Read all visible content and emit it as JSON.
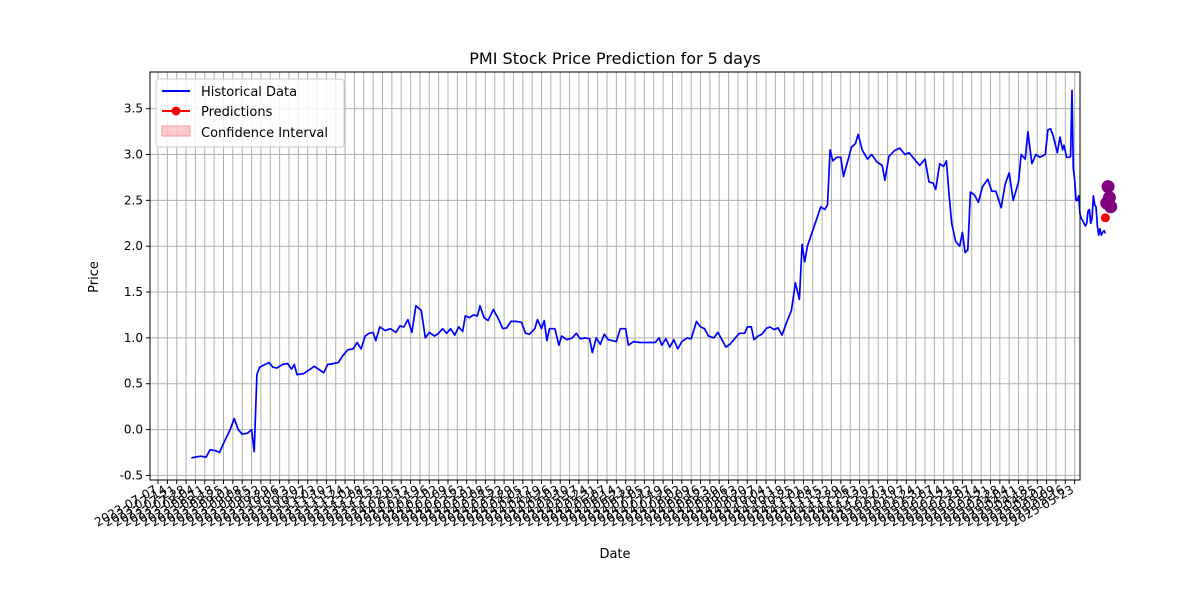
{
  "chart_data": {
    "type": "line",
    "title": "PMI Stock Price Prediction for 5 days",
    "xlabel": "Date",
    "ylabel": "Price",
    "ylim": [
      -0.55,
      3.9
    ],
    "yticks": [
      "-0.5",
      "0.0",
      "0.5",
      "1.0",
      "1.5",
      "2.0",
      "2.5",
      "3.0",
      "3.5"
    ],
    "grid": true,
    "legend_placement": "top-left",
    "legend": [
      "Historical Data",
      "Predictions",
      "Confidence Interval"
    ],
    "colors": {
      "historical": "#0000ff",
      "predictions": "#ff0000",
      "confidence": "#ff9999",
      "highlight": "#800080",
      "grid": "#b0b0b0"
    },
    "x_start": "2023-07-01",
    "x_end": "2025-05-27",
    "series": [
      {
        "name": "Historical Data",
        "points": [
          [
            "2023-08-01",
            -0.31
          ],
          [
            "2023-08-04",
            -0.3
          ],
          [
            "2023-08-08",
            -0.29
          ],
          [
            "2023-08-12",
            -0.3
          ],
          [
            "2023-08-15",
            -0.22
          ],
          [
            "2023-08-19",
            -0.23
          ],
          [
            "2023-08-22",
            -0.25
          ],
          [
            "2023-08-26",
            -0.12
          ],
          [
            "2023-08-30",
            0.0
          ],
          [
            "2023-09-02",
            0.12
          ],
          [
            "2023-09-05",
            0.0
          ],
          [
            "2023-09-08",
            -0.05
          ],
          [
            "2023-09-12",
            -0.04
          ],
          [
            "2023-09-15",
            0.0
          ],
          [
            "2023-09-17",
            -0.24
          ],
          [
            "2023-09-19",
            0.6
          ],
          [
            "2023-09-21",
            0.68
          ],
          [
            "2023-09-25",
            0.71
          ],
          [
            "2023-09-28",
            0.73
          ],
          [
            "2023-10-01",
            0.68
          ],
          [
            "2023-10-04",
            0.67
          ],
          [
            "2023-10-08",
            0.71
          ],
          [
            "2023-10-12",
            0.72
          ],
          [
            "2023-10-15",
            0.66
          ],
          [
            "2023-10-17",
            0.71
          ],
          [
            "2023-10-19",
            0.6
          ],
          [
            "2023-10-24",
            0.61
          ],
          [
            "2023-10-28",
            0.65
          ],
          [
            "2023-11-01",
            0.69
          ],
          [
            "2023-11-05",
            0.65
          ],
          [
            "2023-11-08",
            0.62
          ],
          [
            "2023-11-11",
            0.71
          ],
          [
            "2023-11-15",
            0.72
          ],
          [
            "2023-11-19",
            0.73
          ],
          [
            "2023-11-22",
            0.8
          ],
          [
            "2023-11-26",
            0.87
          ],
          [
            "2023-11-30",
            0.88
          ],
          [
            "2023-12-03",
            0.95
          ],
          [
            "2023-12-06",
            0.88
          ],
          [
            "2023-12-09",
            1.02
          ],
          [
            "2023-12-12",
            1.05
          ],
          [
            "2023-12-15",
            1.06
          ],
          [
            "2023-12-17",
            0.97
          ],
          [
            "2023-12-20",
            1.12
          ],
          [
            "2023-12-24",
            1.08
          ],
          [
            "2023-12-28",
            1.1
          ],
          [
            "2024-01-01",
            1.06
          ],
          [
            "2024-01-04",
            1.13
          ],
          [
            "2024-01-07",
            1.12
          ],
          [
            "2024-01-10",
            1.2
          ],
          [
            "2024-01-13",
            1.06
          ],
          [
            "2024-01-16",
            1.35
          ],
          [
            "2024-01-20",
            1.3
          ],
          [
            "2024-01-23",
            1.0
          ],
          [
            "2024-01-26",
            1.06
          ],
          [
            "2024-01-30",
            1.02
          ],
          [
            "2024-02-02",
            1.05
          ],
          [
            "2024-02-05",
            1.1
          ],
          [
            "2024-02-08",
            1.05
          ],
          [
            "2024-02-11",
            1.1
          ],
          [
            "2024-02-14",
            1.03
          ],
          [
            "2024-02-17",
            1.12
          ],
          [
            "2024-02-20",
            1.07
          ],
          [
            "2024-02-22",
            1.24
          ],
          [
            "2024-02-25",
            1.22
          ],
          [
            "2024-02-28",
            1.25
          ],
          [
            "2024-03-02",
            1.24
          ],
          [
            "2024-03-04",
            1.35
          ],
          [
            "2024-03-07",
            1.22
          ],
          [
            "2024-03-10",
            1.19
          ],
          [
            "2024-03-14",
            1.31
          ],
          [
            "2024-03-18",
            1.2
          ],
          [
            "2024-03-21",
            1.1
          ],
          [
            "2024-03-24",
            1.11
          ],
          [
            "2024-03-27",
            1.18
          ],
          [
            "2024-03-31",
            1.18
          ],
          [
            "2024-04-04",
            1.17
          ],
          [
            "2024-04-07",
            1.05
          ],
          [
            "2024-04-10",
            1.04
          ],
          [
            "2024-04-14",
            1.1
          ],
          [
            "2024-04-16",
            1.2
          ],
          [
            "2024-04-19",
            1.1
          ],
          [
            "2024-04-21",
            1.19
          ],
          [
            "2024-04-23",
            0.97
          ],
          [
            "2024-04-25",
            1.1
          ],
          [
            "2024-04-29",
            1.1
          ],
          [
            "2024-05-02",
            0.92
          ],
          [
            "2024-05-04",
            1.02
          ],
          [
            "2024-05-08",
            0.98
          ],
          [
            "2024-05-12",
            1.0
          ],
          [
            "2024-05-15",
            1.05
          ],
          [
            "2024-05-18",
            0.99
          ],
          [
            "2024-05-22",
            1.0
          ],
          [
            "2024-05-25",
            0.99
          ],
          [
            "2024-05-27",
            0.84
          ],
          [
            "2024-05-30",
            1.0
          ],
          [
            "2024-06-02",
            0.93
          ],
          [
            "2024-06-05",
            1.04
          ],
          [
            "2024-06-08",
            0.98
          ],
          [
            "2024-06-11",
            0.97
          ],
          [
            "2024-06-14",
            0.96
          ],
          [
            "2024-06-17",
            1.1
          ],
          [
            "2024-06-21",
            1.1
          ],
          [
            "2024-06-23",
            0.92
          ],
          [
            "2024-06-27",
            0.96
          ],
          [
            "2024-07-01",
            0.95
          ],
          [
            "2024-07-05",
            0.95
          ],
          [
            "2024-07-09",
            0.95
          ],
          [
            "2024-07-13",
            0.95
          ],
          [
            "2024-07-16",
            1.0
          ],
          [
            "2024-07-18",
            0.92
          ],
          [
            "2024-07-21",
            0.99
          ],
          [
            "2024-07-24",
            0.9
          ],
          [
            "2024-07-27",
            0.98
          ],
          [
            "2024-07-30",
            0.88
          ],
          [
            "2024-08-02",
            0.96
          ],
          [
            "2024-08-06",
            1.0
          ],
          [
            "2024-08-09",
            0.99
          ],
          [
            "2024-08-13",
            1.18
          ],
          [
            "2024-08-16",
            1.12
          ],
          [
            "2024-08-19",
            1.1
          ],
          [
            "2024-08-22",
            1.02
          ],
          [
            "2024-08-26",
            1.0
          ],
          [
            "2024-08-29",
            1.06
          ],
          [
            "2024-09-01",
            0.98
          ],
          [
            "2024-09-04",
            0.9
          ],
          [
            "2024-09-07",
            0.93
          ],
          [
            "2024-09-11",
            1.0
          ],
          [
            "2024-09-14",
            1.05
          ],
          [
            "2024-09-18",
            1.05
          ],
          [
            "2024-09-20",
            1.12
          ],
          [
            "2024-09-23",
            1.12
          ],
          [
            "2024-09-25",
            0.98
          ],
          [
            "2024-09-28",
            1.02
          ],
          [
            "2024-10-01",
            1.04
          ],
          [
            "2024-10-04",
            1.1
          ],
          [
            "2024-10-07",
            1.12
          ],
          [
            "2024-10-10",
            1.09
          ],
          [
            "2024-10-13",
            1.11
          ],
          [
            "2024-10-16",
            1.03
          ],
          [
            "2024-10-19",
            1.15
          ],
          [
            "2024-10-23",
            1.3
          ],
          [
            "2024-10-26",
            1.6
          ],
          [
            "2024-10-29",
            1.42
          ],
          [
            "2024-10-31",
            2.02
          ],
          [
            "2024-11-02",
            1.83
          ],
          [
            "2024-11-04",
            2.0
          ],
          [
            "2024-11-07",
            2.13
          ],
          [
            "2024-11-11",
            2.3
          ],
          [
            "2024-11-14",
            2.43
          ],
          [
            "2024-11-17",
            2.4
          ],
          [
            "2024-11-19",
            2.45
          ],
          [
            "2024-11-21",
            3.05
          ],
          [
            "2024-11-23",
            2.93
          ],
          [
            "2024-11-26",
            2.97
          ],
          [
            "2024-11-29",
            2.97
          ],
          [
            "2024-12-01",
            2.76
          ],
          [
            "2024-12-04",
            2.92
          ],
          [
            "2024-12-07",
            3.08
          ],
          [
            "2024-12-10",
            3.12
          ],
          [
            "2024-12-12",
            3.22
          ],
          [
            "2024-12-15",
            3.05
          ],
          [
            "2024-12-19",
            2.95
          ],
          [
            "2024-12-22",
            3.0
          ],
          [
            "2024-12-26",
            2.92
          ],
          [
            "2024-12-30",
            2.88
          ],
          [
            "2025-01-01",
            2.72
          ],
          [
            "2025-01-04",
            2.98
          ],
          [
            "2025-01-08",
            3.04
          ],
          [
            "2025-01-12",
            3.07
          ],
          [
            "2025-01-16",
            3.0
          ],
          [
            "2025-01-19",
            3.02
          ],
          [
            "2025-01-23",
            2.95
          ],
          [
            "2025-01-27",
            2.88
          ],
          [
            "2025-01-31",
            2.95
          ],
          [
            "2025-02-03",
            2.7
          ],
          [
            "2025-02-06",
            2.69
          ],
          [
            "2025-02-08",
            2.62
          ],
          [
            "2025-02-11",
            2.9
          ],
          [
            "2025-02-14",
            2.87
          ],
          [
            "2025-02-16",
            2.93
          ],
          [
            "2025-02-18",
            2.56
          ],
          [
            "2025-02-20",
            2.25
          ],
          [
            "2025-02-23",
            2.05
          ],
          [
            "2025-02-26",
            2.0
          ],
          [
            "2025-02-28",
            2.15
          ],
          [
            "2025-03-02",
            1.93
          ],
          [
            "2025-03-04",
            1.96
          ],
          [
            "2025-03-06",
            2.59
          ],
          [
            "2025-03-09",
            2.56
          ],
          [
            "2025-03-12",
            2.48
          ],
          [
            "2025-03-15",
            2.65
          ],
          [
            "2025-03-19",
            2.73
          ],
          [
            "2025-03-22",
            2.6
          ],
          [
            "2025-03-25",
            2.6
          ],
          [
            "2025-03-29",
            2.42
          ],
          [
            "2025-04-01",
            2.68
          ],
          [
            "2025-04-04",
            2.8
          ],
          [
            "2025-04-07",
            2.5
          ],
          [
            "2025-04-11",
            2.7
          ],
          [
            "2025-04-13",
            3.0
          ],
          [
            "2025-04-16",
            2.95
          ],
          [
            "2025-04-18",
            3.25
          ],
          [
            "2025-04-21",
            2.9
          ],
          [
            "2025-04-24",
            3.0
          ],
          [
            "2025-04-27",
            2.97
          ],
          [
            "2025-05-01",
            3.0
          ],
          [
            "2025-05-03",
            3.27
          ],
          [
            "2025-05-05",
            3.28
          ],
          [
            "2025-05-07",
            3.2
          ],
          [
            "2025-05-10",
            3.02
          ],
          [
            "2025-05-12",
            3.19
          ],
          [
            "2025-05-14",
            3.05
          ],
          [
            "2025-05-15",
            3.1
          ],
          [
            "2025-05-17",
            2.97
          ],
          [
            "2025-05-19",
            2.97
          ],
          [
            "2025-05-20",
            2.98
          ],
          [
            "2025-05-21",
            3.7
          ],
          [
            "2025-05-22",
            2.85
          ],
          [
            "2025-05-23",
            2.72
          ],
          [
            "2025-05-24",
            2.5
          ],
          [
            "2025-05-25",
            2.5
          ],
          [
            "2025-05-26",
            2.55
          ],
          [
            "2025-05-27",
            2.35
          ],
          [
            "2025-05-28",
            2.3
          ],
          [
            "2025-05-29",
            2.28
          ],
          [
            "2025-05-30",
            2.25
          ],
          [
            "2025-05-31",
            2.22
          ],
          [
            "2025-06-01",
            2.25
          ],
          [
            "2025-06-02",
            2.38
          ],
          [
            "2025-06-03",
            2.4
          ],
          [
            "2025-06-04",
            2.25
          ],
          [
            "2025-06-05",
            2.3
          ],
          [
            "2025-06-06",
            2.55
          ],
          [
            "2025-06-07",
            2.45
          ],
          [
            "2025-06-08",
            2.43
          ],
          [
            "2025-06-09",
            2.22
          ],
          [
            "2025-06-10",
            2.12
          ],
          [
            "2025-06-11",
            2.19
          ],
          [
            "2025-06-12",
            2.12
          ],
          [
            "2025-06-13",
            2.15
          ],
          [
            "2025-06-14",
            2.17
          ],
          [
            "2025-06-15",
            2.14
          ]
        ]
      },
      {
        "name": "Predictions",
        "points": [
          [
            "2025-06-15",
            2.31
          ],
          [
            "2025-06-16",
            2.47
          ],
          [
            "2025-06-17",
            2.65
          ],
          [
            "2025-06-18",
            2.53
          ],
          [
            "2025-06-19",
            2.43
          ]
        ]
      }
    ]
  }
}
